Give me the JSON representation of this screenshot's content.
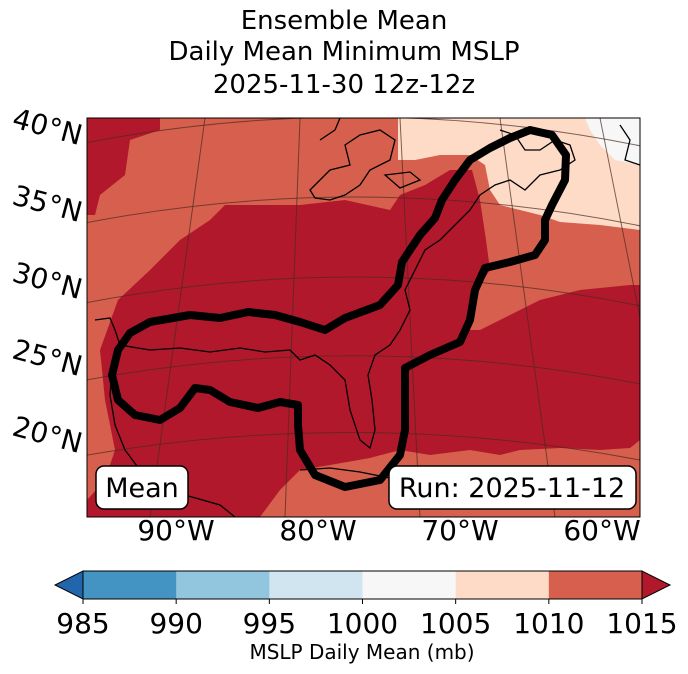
{
  "figure": {
    "title_lines": [
      "Ensemble Mean",
      "Daily Mean Minimum MSLP",
      "2025-11-30 12z-12z"
    ]
  },
  "map": {
    "projection": "lambert-conformal",
    "lat_labels": [
      "40°N",
      "35°N",
      "30°N",
      "25°N",
      "20°N"
    ],
    "lon_labels": [
      "90°W",
      "80°W",
      "70°W",
      "60°W"
    ],
    "features": [
      "coastlines",
      "lakes",
      "lat-lon-gridlines"
    ],
    "fields": [
      {
        "range": "1010-1015 mb",
        "color": "#d6604d",
        "region": "outer margins of domain"
      },
      {
        "range": "1015+ mb",
        "color": "#b2182b",
        "region": "central US, Gulf, western Atlantic"
      },
      {
        "range": "1005-1010 mb",
        "color": "#fddbc7",
        "region": "New England / Maritimes"
      },
      {
        "range": "1000-1005 mb",
        "color": "#f7f7f7",
        "region": "far northeast corner"
      }
    ],
    "contour": {
      "label": "Mean",
      "color": "#000000",
      "shape": "closed outline from western Gulf across Gulf Coast, Florida, up the US East Coast to Nova Scotia"
    },
    "left_box": "Mean",
    "right_box": "Run: 2025-11-12"
  },
  "colorbar": {
    "ticks": [
      "985",
      "990",
      "995",
      "1000",
      "1005",
      "1010",
      "1015"
    ],
    "colors": [
      "#2166ac",
      "#4393c3",
      "#92c5de",
      "#d1e5f0",
      "#f7f7f7",
      "#fddbc7",
      "#d6604d",
      "#b2182b"
    ],
    "label": "MSLP Daily Mean (mb)",
    "extend": "both"
  }
}
